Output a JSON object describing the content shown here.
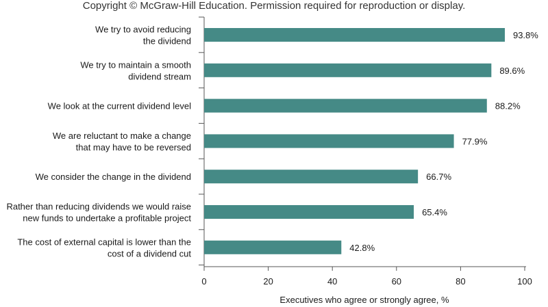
{
  "copyright": "Copyright © McGraw-Hill Education. Permission required for reproduction or display.",
  "chart_data": {
    "type": "bar",
    "orientation": "horizontal",
    "categories": [
      [
        "We try to avoid reducing",
        "the dividend"
      ],
      [
        "We try to maintain a smooth",
        "dividend stream"
      ],
      [
        "We look at the current dividend level"
      ],
      [
        "We are reluctant to make a change",
        "that may have to be reversed"
      ],
      [
        "We consider the change in the dividend"
      ],
      [
        "Rather than reducing dividends we would raise",
        "new funds to undertake a profitable project"
      ],
      [
        "The cost of external capital is lower than the",
        "cost of a dividend cut"
      ]
    ],
    "values": [
      93.8,
      89.6,
      88.2,
      77.9,
      66.7,
      65.4,
      42.8
    ],
    "value_labels": [
      "93.8%",
      "89.6%",
      "88.2%",
      "77.9%",
      "66.7%",
      "65.4%",
      "42.8%"
    ],
    "xlabel": "Executives who agree or strongly agree, %",
    "xlim": [
      0,
      100
    ],
    "xticks": [
      0,
      20,
      40,
      60,
      80,
      100
    ],
    "bar_color": "#458a86",
    "grid": false
  }
}
